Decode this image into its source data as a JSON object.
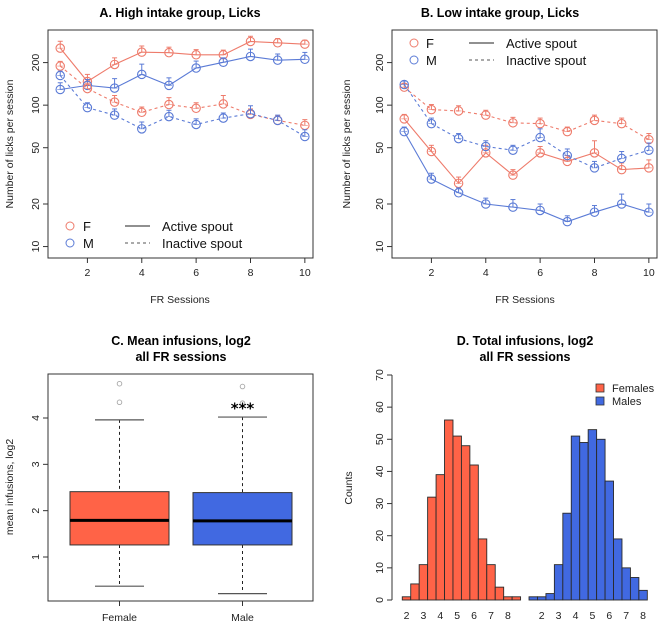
{
  "colors": {
    "female_line": "#ee7b6b",
    "male_line": "#5b7bd6",
    "female_fill": "#ff6347",
    "male_fill": "#4169e1",
    "outlier": "#a8a8a8"
  },
  "chart_data": [
    {
      "id": "A",
      "type": "line",
      "title": "A. High intake group, Licks",
      "xlabel": "FR Sessions",
      "ylabel": "Number of licks per session",
      "yscale": "log",
      "x": [
        1,
        2,
        3,
        4,
        5,
        6,
        7,
        8,
        9,
        10
      ],
      "xticks": [
        2,
        4,
        6,
        8,
        10
      ],
      "xlim": [
        0.55,
        10.3
      ],
      "yticks": [
        10,
        20,
        50,
        100,
        200
      ],
      "ylim": [
        8.3,
        340
      ],
      "legend": {
        "placement": "bottom-left",
        "groups": [
          {
            "symbol": "circle",
            "label": "F",
            "color_key": "female_line"
          },
          {
            "symbol": "circle",
            "label": "M",
            "color_key": "male_line"
          }
        ],
        "lines": [
          {
            "style": "solid",
            "label": "Active spout"
          },
          {
            "style": "dashed",
            "label": "Inactive spout"
          }
        ]
      },
      "series": [
        {
          "name": "F Active spout",
          "group": "F",
          "style": "solid",
          "values": [
            253,
            147,
            194,
            237,
            235,
            227,
            227,
            282,
            276,
            270
          ],
          "err": [
            30,
            18,
            22,
            25,
            22,
            20,
            18,
            25,
            20,
            18
          ]
        },
        {
          "name": "M Active spout",
          "group": "M",
          "style": "solid",
          "values": [
            129,
            138,
            132,
            165,
            138,
            183,
            201,
            221,
            208,
            211
          ],
          "err": [
            15,
            14,
            22,
            30,
            18,
            22,
            15,
            28,
            22,
            25
          ]
        },
        {
          "name": "F Inactive spout",
          "group": "F",
          "style": "dashed",
          "values": [
            189,
            131,
            105,
            89,
            101,
            95,
            102,
            86,
            78,
            72
          ],
          "err": [
            15,
            12,
            12,
            8,
            12,
            9,
            15,
            8,
            6,
            7
          ]
        },
        {
          "name": "M Inactive spout",
          "group": "M",
          "style": "dashed",
          "values": [
            162,
            96,
            85,
            68,
            83,
            73,
            81,
            87,
            78,
            60
          ],
          "err": [
            12,
            8,
            9,
            8,
            9,
            7,
            7,
            12,
            7,
            7
          ]
        }
      ]
    },
    {
      "id": "B",
      "type": "line",
      "title": "B. Low intake group, Licks",
      "xlabel": "FR Sessions",
      "ylabel": "Number of licks per session",
      "yscale": "log",
      "x": [
        1,
        2,
        3,
        4,
        5,
        6,
        7,
        8,
        9,
        10
      ],
      "xticks": [
        2,
        4,
        6,
        8,
        10
      ],
      "xlim": [
        0.55,
        10.3
      ],
      "yticks": [
        10,
        20,
        50,
        100,
        200
      ],
      "ylim": [
        8.3,
        340
      ],
      "legend": {
        "placement": "top-left",
        "groups": [
          {
            "symbol": "circle",
            "label": "F",
            "color_key": "female_line"
          },
          {
            "symbol": "circle",
            "label": "M",
            "color_key": "male_line"
          }
        ],
        "lines": [
          {
            "style": "solid",
            "label": "Active spout"
          },
          {
            "style": "dashed",
            "label": "Inactive spout"
          }
        ]
      },
      "series": [
        {
          "name": "F Active spout",
          "group": "F",
          "style": "solid",
          "values": [
            80,
            47,
            28,
            46,
            32,
            46,
            40,
            46,
            35,
            36
          ],
          "err": [
            6,
            5,
            3,
            6,
            3,
            5,
            4,
            10,
            4,
            5
          ]
        },
        {
          "name": "M Active spout",
          "group": "M",
          "style": "solid",
          "values": [
            65,
            30,
            24,
            20,
            19,
            18,
            15,
            17.5,
            20,
            17.5
          ],
          "err": [
            5,
            3,
            2,
            2,
            2.5,
            2,
            1.5,
            2,
            3.5,
            2.5
          ]
        },
        {
          "name": "F Inactive spout",
          "group": "F",
          "style": "dashed",
          "values": [
            134,
            93,
            91,
            85,
            75,
            74,
            65,
            78,
            74,
            57
          ],
          "err": [
            8,
            8,
            8,
            7,
            7,
            7,
            5,
            7,
            7,
            6
          ]
        },
        {
          "name": "M Inactive spout",
          "group": "M",
          "style": "dashed",
          "values": [
            140,
            74,
            58,
            51,
            48,
            59,
            44,
            36,
            42,
            48
          ],
          "err": [
            8,
            7,
            5,
            5,
            4,
            9,
            5,
            4,
            5,
            6
          ]
        }
      ]
    },
    {
      "id": "C",
      "type": "box",
      "title": "C. Mean infusions, log2",
      "subtitle": "all FR sessions",
      "xlabel": "",
      "ylabel": "mean infusions, log2",
      "categories": [
        "Female",
        "Male"
      ],
      "yticks": [
        1,
        2,
        3,
        4
      ],
      "ylim": [
        0.05,
        4.95
      ],
      "boxes": [
        {
          "name": "Female",
          "color_key": "female_fill",
          "whisker_low": 0.37,
          "q1": 1.26,
          "median": 1.79,
          "q3": 2.41,
          "whisker_high": 3.96,
          "outliers": [
            4.34,
            4.74
          ]
        },
        {
          "name": "Male",
          "color_key": "male_fill",
          "whisker_low": 0.21,
          "q1": 1.26,
          "median": 1.78,
          "q3": 2.39,
          "whisker_high": 4.02,
          "outliers": [
            4.32,
            4.68
          ]
        }
      ],
      "annotation": {
        "text": "***",
        "category": "Male",
        "y": 4.2
      }
    },
    {
      "id": "D",
      "type": "bar",
      "title": "D. Total  infusions, log2",
      "subtitle": "all FR sessions",
      "xlabel": "",
      "ylabel": "Counts",
      "yticks": [
        0,
        10,
        20,
        30,
        40,
        50,
        60,
        70
      ],
      "ylim": [
        0,
        70
      ],
      "legend": {
        "placement": "top-right",
        "entries": [
          {
            "label": "Females",
            "color_key": "female_fill"
          },
          {
            "label": "Males",
            "color_key": "male_fill"
          }
        ]
      },
      "series": [
        {
          "name": "Females",
          "color_key": "female_fill",
          "bin_centers": [
            2,
            2.5,
            3,
            3.5,
            4,
            4.5,
            5,
            5.5,
            6,
            6.5,
            7,
            7.5,
            8,
            8.5
          ],
          "values": [
            1,
            5,
            11,
            32,
            39,
            56,
            51,
            48,
            42,
            19,
            11,
            4,
            1,
            1
          ],
          "tick_labels": [
            "2",
            "3",
            "4",
            "5",
            "6",
            "7",
            "8"
          ]
        },
        {
          "name": "Males",
          "color_key": "male_fill",
          "bin_centers": [
            1.5,
            2,
            2.5,
            3,
            3.5,
            4,
            4.5,
            5,
            5.5,
            6,
            6.5,
            7,
            7.5,
            8
          ],
          "values": [
            1,
            1,
            2,
            11,
            27,
            51,
            49,
            53,
            50,
            37,
            19,
            10,
            7,
            3
          ],
          "tick_labels": [
            "2",
            "3",
            "4",
            "5",
            "6",
            "7",
            "8"
          ]
        }
      ]
    }
  ]
}
